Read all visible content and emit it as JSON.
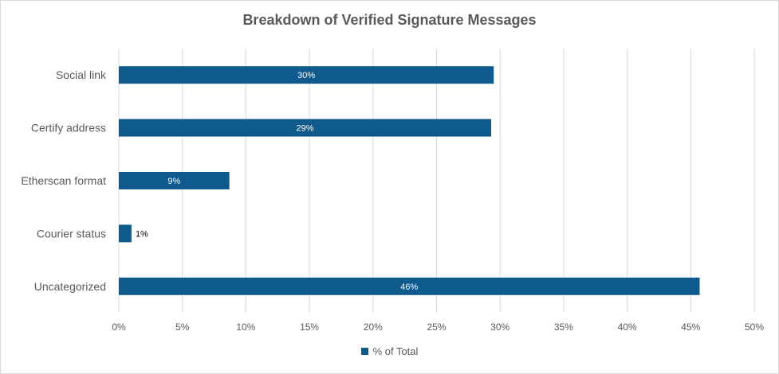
{
  "chart_data": {
    "type": "bar",
    "orientation": "horizontal",
    "title": "Breakdown of Verified Signature Messages",
    "categories": [
      "Social link",
      "Certify address",
      "Etherscan format",
      "Courier status",
      "Uncategorized"
    ],
    "series": [
      {
        "name": "% of Total",
        "values": [
          29.5,
          29.3,
          8.7,
          1.0,
          45.7
        ],
        "labels": [
          "30%",
          "29%",
          "9%",
          "1%",
          "46%"
        ]
      }
    ],
    "xlim": [
      0,
      50
    ],
    "xticks": [
      "0%",
      "5%",
      "10%",
      "15%",
      "20%",
      "25%",
      "30%",
      "35%",
      "40%",
      "45%",
      "50%"
    ],
    "grid": true,
    "legend_position": "bottom",
    "colors": {
      "bar": "#0F5A8C",
      "grid": "#D9D9D9",
      "text": "#595959",
      "label_inside": "#FFFFFF",
      "label_outside": "#000000"
    }
  }
}
